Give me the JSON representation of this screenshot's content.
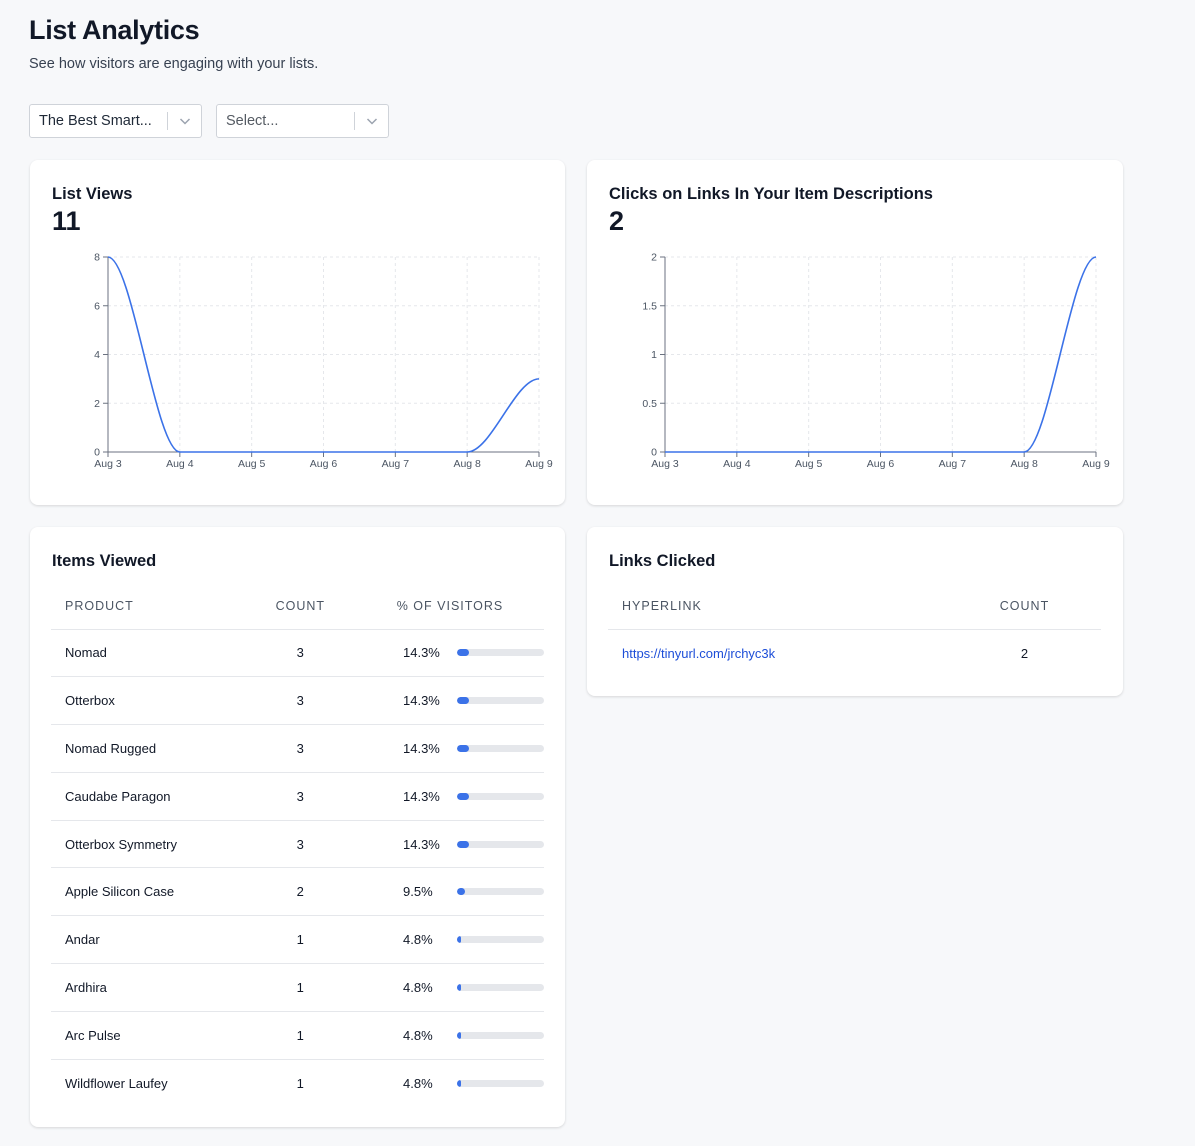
{
  "header": {
    "title": "List Analytics",
    "subtitle": "See how visitors are engaging with your lists."
  },
  "filters": {
    "list_select": {
      "value": "The Best Smart..."
    },
    "second_select": {
      "placeholder": "Select..."
    }
  },
  "list_views": {
    "title": "List Views",
    "total": "11"
  },
  "link_clicks": {
    "title": "Clicks on Links In Your Item Descriptions",
    "total": "2"
  },
  "chart_data": [
    {
      "type": "line",
      "categories": [
        "Aug 3",
        "Aug 4",
        "Aug 5",
        "Aug 6",
        "Aug 7",
        "Aug 8",
        "Aug 9"
      ],
      "values": [
        8,
        0,
        0,
        0,
        0,
        0,
        3
      ],
      "yticks": [
        "0",
        "2",
        "4",
        "6",
        "8"
      ],
      "ylim": [
        0,
        8
      ],
      "grid": true,
      "color": "#3b72e8"
    },
    {
      "type": "line",
      "categories": [
        "Aug 3",
        "Aug 4",
        "Aug 5",
        "Aug 6",
        "Aug 7",
        "Aug 8",
        "Aug 9"
      ],
      "values": [
        0,
        0,
        0,
        0,
        0,
        0,
        2
      ],
      "yticks": [
        "0",
        "0.5",
        "1",
        "1.5",
        "2"
      ],
      "ylim": [
        0,
        2
      ],
      "grid": true,
      "color": "#3b72e8"
    }
  ],
  "items_viewed": {
    "title": "Items Viewed",
    "columns": {
      "product": "PRODUCT",
      "count": "COUNT",
      "pct": "% OF VISITORS"
    },
    "rows": [
      {
        "product": "Nomad",
        "count": "3",
        "pct": "14.3%",
        "fraction": 0.143
      },
      {
        "product": "Otterbox",
        "count": "3",
        "pct": "14.3%",
        "fraction": 0.143
      },
      {
        "product": "Nomad Rugged",
        "count": "3",
        "pct": "14.3%",
        "fraction": 0.143
      },
      {
        "product": "Caudabe Paragon",
        "count": "3",
        "pct": "14.3%",
        "fraction": 0.143
      },
      {
        "product": "Otterbox Symmetry",
        "count": "3",
        "pct": "14.3%",
        "fraction": 0.143
      },
      {
        "product": "Apple Silicon Case",
        "count": "2",
        "pct": "9.5%",
        "fraction": 0.095
      },
      {
        "product": "Andar",
        "count": "1",
        "pct": "4.8%",
        "fraction": 0.048
      },
      {
        "product": "Ardhira",
        "count": "1",
        "pct": "4.8%",
        "fraction": 0.048
      },
      {
        "product": "Arc Pulse",
        "count": "1",
        "pct": "4.8%",
        "fraction": 0.048
      },
      {
        "product": "Wildflower Laufey",
        "count": "1",
        "pct": "4.8%",
        "fraction": 0.048
      }
    ]
  },
  "links_clicked": {
    "title": "Links Clicked",
    "columns": {
      "hyperlink": "HYPERLINK",
      "count": "COUNT"
    },
    "rows": [
      {
        "url": "https://tinyurl.com/jrchyc3k",
        "count": "2"
      }
    ]
  }
}
